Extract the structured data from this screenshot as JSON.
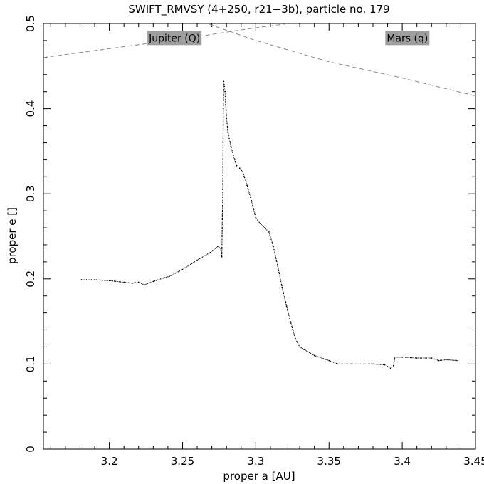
{
  "chart_data": {
    "type": "scatter",
    "title": "SWIFT_RMVSY (4+250, r21−3b), particle no. 179",
    "xlabel": "proper a [AU]",
    "ylabel": "proper e []",
    "xlim": [
      3.155,
      3.45
    ],
    "ylim": [
      0,
      0.5
    ],
    "xticks": [
      3.2,
      3.25,
      3.3,
      3.35,
      3.4,
      3.45
    ],
    "xtick_labels": [
      "3.2",
      "3.25",
      "3.3",
      "3.35",
      "3.4",
      "3.45"
    ],
    "yticks": [
      0,
      0.1,
      0.2,
      0.3,
      0.4,
      0.5
    ],
    "ytick_labels": [
      "0",
      "0.1",
      "0.2",
      "0.3",
      "0.4",
      "0.5"
    ],
    "grid": false,
    "series": [
      {
        "style": "dots",
        "points": [
          [
            3.181,
            0.199
          ],
          [
            3.19,
            0.199
          ],
          [
            3.2,
            0.198
          ],
          [
            3.21,
            0.196
          ],
          [
            3.216,
            0.195
          ],
          [
            3.22,
            0.196
          ],
          [
            3.224,
            0.193
          ],
          [
            3.23,
            0.197
          ],
          [
            3.237,
            0.201
          ],
          [
            3.241,
            0.203
          ],
          [
            3.25,
            0.211
          ],
          [
            3.26,
            0.222
          ],
          [
            3.268,
            0.23
          ],
          [
            3.274,
            0.238
          ],
          [
            3.276,
            0.236
          ],
          [
            3.2765,
            0.23
          ],
          [
            3.2768,
            0.226
          ],
          [
            3.2772,
            0.275
          ],
          [
            3.2775,
            0.305
          ],
          [
            3.2778,
            0.4
          ],
          [
            3.2781,
            0.432
          ],
          [
            3.2785,
            0.428
          ],
          [
            3.279,
            0.42
          ],
          [
            3.2795,
            0.405
          ],
          [
            3.28,
            0.39
          ],
          [
            3.281,
            0.372
          ],
          [
            3.283,
            0.356
          ],
          [
            3.285,
            0.343
          ],
          [
            3.287,
            0.333
          ],
          [
            3.289,
            0.33
          ],
          [
            3.291,
            0.326
          ],
          [
            3.294,
            0.31
          ],
          [
            3.297,
            0.292
          ],
          [
            3.3,
            0.272
          ],
          [
            3.303,
            0.265
          ],
          [
            3.306,
            0.26
          ],
          [
            3.309,
            0.255
          ],
          [
            3.312,
            0.238
          ],
          [
            3.315,
            0.215
          ],
          [
            3.318,
            0.19
          ],
          [
            3.321,
            0.168
          ],
          [
            3.324,
            0.148
          ],
          [
            3.327,
            0.13
          ],
          [
            3.33,
            0.12
          ],
          [
            3.333,
            0.117
          ],
          [
            3.34,
            0.11
          ],
          [
            3.35,
            0.104
          ],
          [
            3.356,
            0.1
          ],
          [
            3.365,
            0.1
          ],
          [
            3.38,
            0.1
          ],
          [
            3.388,
            0.099
          ],
          [
            3.392,
            0.095
          ],
          [
            3.394,
            0.098
          ],
          [
            3.395,
            0.108
          ],
          [
            3.4,
            0.108
          ],
          [
            3.41,
            0.107
          ],
          [
            3.42,
            0.107
          ],
          [
            3.425,
            0.104
          ],
          [
            3.43,
            0.105
          ],
          [
            3.438,
            0.104
          ]
        ]
      },
      {
        "style": "dashed",
        "name": "Jupiter (Q)",
        "points": [
          [
            3.155,
            0.46
          ],
          [
            3.25,
            0.482
          ],
          [
            3.3,
            0.495
          ],
          [
            3.345,
            0.505
          ]
        ]
      },
      {
        "style": "dashed",
        "name": "Mars (q)",
        "points": [
          [
            3.25,
            0.51
          ],
          [
            3.3,
            0.48
          ],
          [
            3.35,
            0.455
          ],
          [
            3.4,
            0.436
          ],
          [
            3.45,
            0.415
          ]
        ]
      }
    ],
    "annotations": [
      {
        "text": "Jupiter (Q)",
        "x": 3.2445,
        "y": 0.483
      },
      {
        "text": "Mars (q)",
        "x": 3.4035,
        "y": 0.483
      }
    ]
  }
}
